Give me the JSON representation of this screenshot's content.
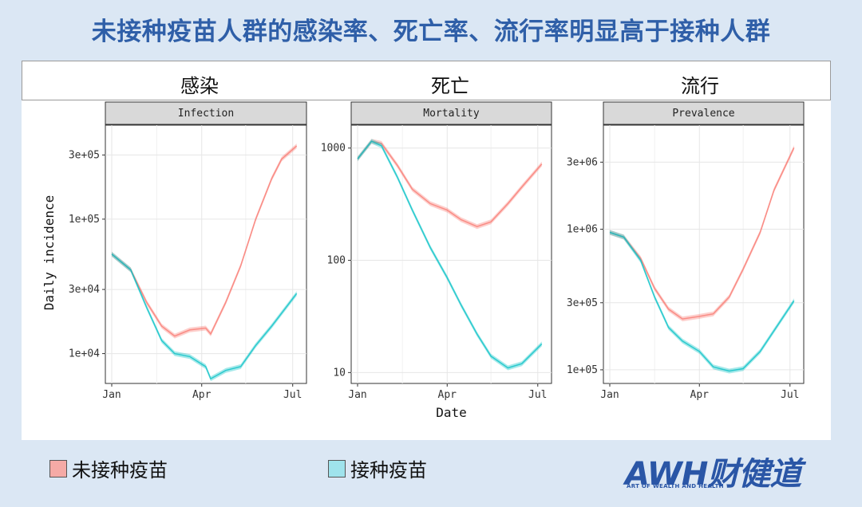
{
  "headline": "未接种疫苗人群的感染率、死亡率、流行率明显高于接种人群",
  "cn_labels": [
    "感染",
    "死亡",
    "流行"
  ],
  "legend": [
    {
      "label": "未接种疫苗",
      "color": "#f5aaa6"
    },
    {
      "label": "接种疫苗",
      "color": "#9fe3ec"
    }
  ],
  "logo": {
    "main": "AWH财健道",
    "sub": "ART OF WEALTH AND HEALTH"
  },
  "colors": {
    "unvaccinated": "#f8766d",
    "vaccinated": "#00bfc4"
  },
  "chart_data": [
    {
      "type": "line",
      "title": "Infection",
      "ylabel": "Daily incidence",
      "xlabel": "",
      "y_scale": "log",
      "x_ticks": [
        "Jan",
        "Apr",
        "Jul"
      ],
      "y_ticks": [
        {
          "value": 10000,
          "label": "1e+04"
        },
        {
          "value": 30000,
          "label": "3e+04"
        },
        {
          "value": 100000,
          "label": "1e+05"
        },
        {
          "value": 300000,
          "label": "3e+05"
        }
      ],
      "grid": true,
      "series": [
        {
          "key": "unvaccinated",
          "x": [
            "2021-01-01",
            "2021-01-20",
            "2021-02-05",
            "2021-02-20",
            "2021-03-05",
            "2021-03-20",
            "2021-04-05",
            "2021-04-10",
            "2021-04-25",
            "2021-05-10",
            "2021-05-25",
            "2021-06-10",
            "2021-06-20",
            "2021-07-05"
          ],
          "y": [
            55000,
            42000,
            24000,
            16000,
            13500,
            15000,
            15500,
            14000,
            24000,
            45000,
            100000,
            200000,
            280000,
            350000
          ]
        },
        {
          "key": "vaccinated",
          "x": [
            "2021-01-01",
            "2021-01-20",
            "2021-02-05",
            "2021-02-20",
            "2021-03-05",
            "2021-03-20",
            "2021-04-05",
            "2021-04-10",
            "2021-04-25",
            "2021-05-10",
            "2021-05-25",
            "2021-06-10",
            "2021-06-20",
            "2021-07-05"
          ],
          "y": [
            55000,
            42000,
            22000,
            12500,
            10000,
            9500,
            8000,
            6500,
            7500,
            8000,
            11500,
            16000,
            20000,
            28000
          ]
        }
      ]
    },
    {
      "type": "line",
      "title": "Mortality",
      "ylabel": "",
      "xlabel": "Date",
      "y_scale": "log",
      "x_ticks": [
        "Jan",
        "Apr",
        "Jul"
      ],
      "y_ticks": [
        {
          "value": 10,
          "label": "10"
        },
        {
          "value": 100,
          "label": "100"
        },
        {
          "value": 1000,
          "label": "1000"
        }
      ],
      "grid": true,
      "series": [
        {
          "key": "unvaccinated",
          "x": [
            "2021-01-01",
            "2021-01-15",
            "2021-01-25",
            "2021-02-10",
            "2021-02-25",
            "2021-03-15",
            "2021-04-01",
            "2021-04-15",
            "2021-05-01",
            "2021-05-15",
            "2021-06-01",
            "2021-06-15",
            "2021-07-05"
          ],
          "y": [
            800,
            1150,
            1100,
            700,
            430,
            320,
            280,
            230,
            200,
            220,
            320,
            450,
            720
          ]
        },
        {
          "key": "vaccinated",
          "x": [
            "2021-01-01",
            "2021-01-15",
            "2021-01-25",
            "2021-02-10",
            "2021-02-25",
            "2021-03-15",
            "2021-04-01",
            "2021-04-15",
            "2021-05-01",
            "2021-05-15",
            "2021-06-01",
            "2021-06-15",
            "2021-07-05"
          ],
          "y": [
            800,
            1150,
            1050,
            550,
            280,
            130,
            70,
            40,
            22,
            14,
            11,
            12,
            18
          ]
        }
      ]
    },
    {
      "type": "line",
      "title": "Prevalence",
      "ylabel": "",
      "xlabel": "",
      "y_scale": "log",
      "x_ticks": [
        "Jan",
        "Apr",
        "Jul"
      ],
      "y_ticks": [
        {
          "value": 100000,
          "label": "1e+05"
        },
        {
          "value": 300000,
          "label": "3e+05"
        },
        {
          "value": 1000000,
          "label": "1e+06"
        },
        {
          "value": 3000000,
          "label": "3e+06"
        }
      ],
      "grid": true,
      "series": [
        {
          "key": "unvaccinated",
          "x": [
            "2021-01-01",
            "2021-01-15",
            "2021-02-01",
            "2021-02-15",
            "2021-03-01",
            "2021-03-15",
            "2021-04-01",
            "2021-04-15",
            "2021-05-01",
            "2021-05-15",
            "2021-06-01",
            "2021-06-15",
            "2021-07-05"
          ],
          "y": [
            950000,
            880000,
            620000,
            380000,
            270000,
            230000,
            240000,
            250000,
            330000,
            520000,
            950000,
            1900000,
            3800000
          ]
        },
        {
          "key": "vaccinated",
          "x": [
            "2021-01-01",
            "2021-01-15",
            "2021-02-01",
            "2021-02-15",
            "2021-03-01",
            "2021-03-15",
            "2021-04-01",
            "2021-04-15",
            "2021-05-01",
            "2021-05-15",
            "2021-06-01",
            "2021-06-15",
            "2021-07-05"
          ],
          "y": [
            950000,
            880000,
            600000,
            330000,
            200000,
            160000,
            135000,
            105000,
            98000,
            102000,
            135000,
            190000,
            310000
          ]
        }
      ]
    }
  ]
}
